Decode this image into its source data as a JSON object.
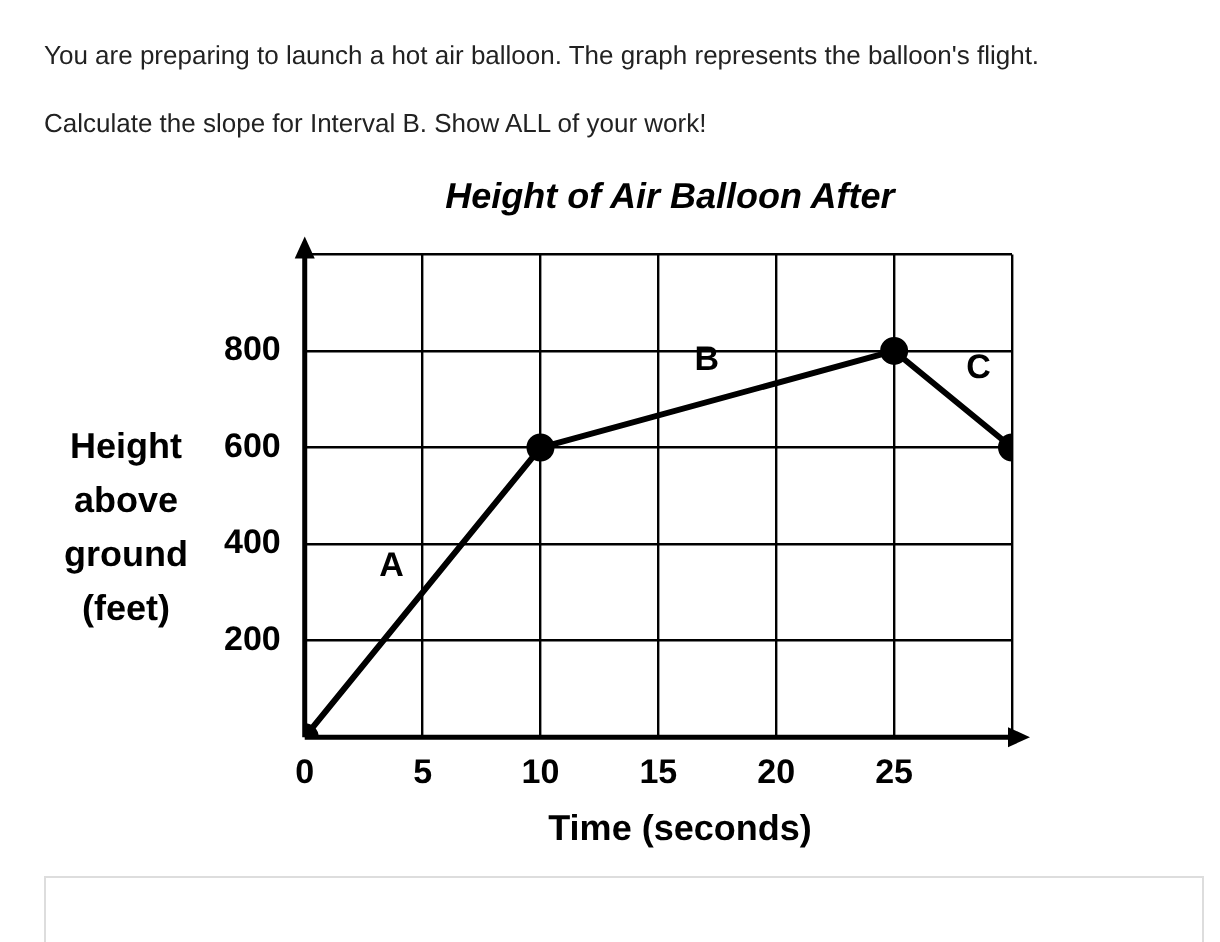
{
  "chart_data": {
    "type": "line",
    "title": "Height of Air Balloon After",
    "xlabel": "Time (seconds)",
    "ylabel": "Height above ground (feet)",
    "annotations": [
      "You are preparing to launch a hot air balloon. The graph represents the balloon's flight.",
      "Calculate the slope for Interval B. Show ALL of your work!",
      "A",
      "B",
      "C"
    ],
    "x": [
      0,
      10,
      25,
      30
    ],
    "series": [
      {
        "color": "#000000",
        "values": [
          0,
          600,
          800,
          600
        ]
      }
    ],
    "xlim": [
      0,
      30
    ],
    "ylim": [
      0,
      1000
    ],
    "xticks": [
      0,
      5,
      10,
      15,
      20,
      25,
      {
        "value": 30,
        "label": null
      }
    ],
    "yticks": [
      {
        "value": 0,
        "label": null
      },
      200,
      400,
      600,
      800,
      {
        "value": 1000,
        "label": null
      }
    ],
    "grid": true,
    "legend": false,
    "marker": "circle",
    "line_style": "solid"
  }
}
